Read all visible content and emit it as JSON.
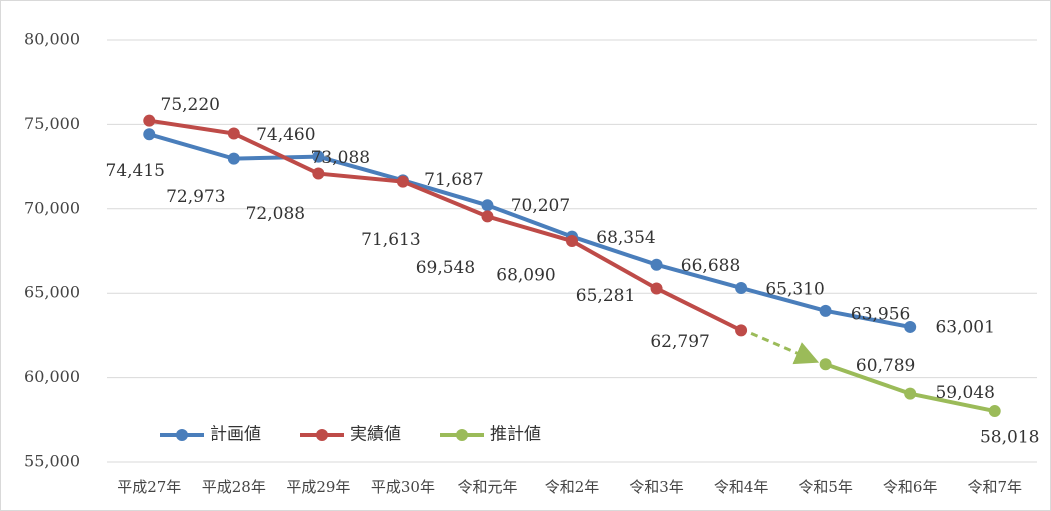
{
  "chart_data": {
    "type": "line",
    "categories": [
      "平成27年",
      "平成28年",
      "平成29年",
      "平成30年",
      "令和元年",
      "令和2年",
      "令和3年",
      "令和4年",
      "令和5年",
      "令和6年",
      "令和7年"
    ],
    "series": [
      {
        "name": "計画値",
        "color": "#4a7ebb",
        "values": [
          74415,
          72973,
          73088,
          71687,
          70207,
          68354,
          66688,
          65310,
          63956,
          63001,
          null
        ],
        "value_labels": [
          "74,415",
          "72,973",
          "73,088",
          "71,687",
          "70,207",
          "68,354",
          "66,688",
          "65,310",
          "63,956",
          "63,001",
          null
        ]
      },
      {
        "name": "実績値",
        "color": "#be4b48",
        "values": [
          75220,
          74460,
          72088,
          71613,
          69548,
          68090,
          65281,
          62797,
          null,
          null,
          null
        ],
        "value_labels": [
          "75,220",
          "74,460",
          "72,088",
          "71,613",
          "69,548",
          "68,090",
          "65,281",
          "62,797",
          null,
          null,
          null
        ]
      },
      {
        "name": "推計値",
        "color": "#9bbb59",
        "values": [
          null,
          null,
          null,
          null,
          null,
          null,
          null,
          null,
          60789,
          59048,
          58018
        ],
        "value_labels": [
          null,
          null,
          null,
          null,
          null,
          null,
          null,
          null,
          "60,789",
          "59,048",
          "58,018"
        ]
      }
    ],
    "ylim": [
      55000,
      80000
    ],
    "yticks": [
      {
        "value": 55000,
        "label": "55,000"
      },
      {
        "value": 60000,
        "label": "60,000"
      },
      {
        "value": 65000,
        "label": "65,000"
      },
      {
        "value": 70000,
        "label": "70,000"
      },
      {
        "value": 75000,
        "label": "75,000"
      },
      {
        "value": 80000,
        "label": "80,000"
      }
    ],
    "grid": true,
    "legend": "lower left"
  }
}
